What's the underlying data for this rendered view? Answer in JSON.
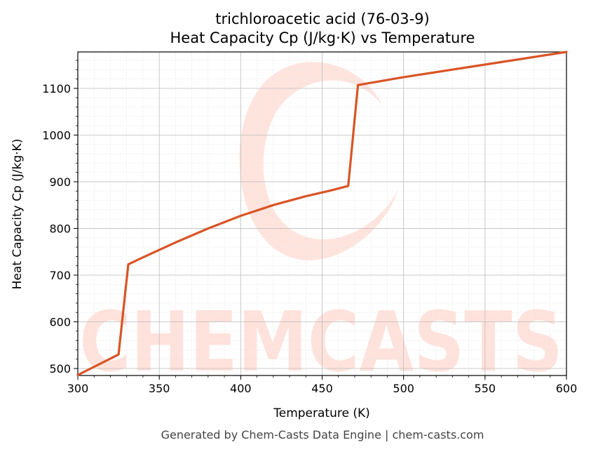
{
  "chart_data": {
    "type": "line",
    "title_line1": "trichloroacetic acid (76-03-9)",
    "title_line2": "Heat Capacity Cp (J/kg·K) vs Temperature",
    "xlabel": "Temperature (K)",
    "ylabel": "Heat Capacity Cp (J/kg·K)",
    "xlim": [
      300,
      600
    ],
    "ylim": [
      485,
      1178
    ],
    "x_ticks": [
      300,
      350,
      400,
      450,
      500,
      550,
      600
    ],
    "y_ticks": [
      500,
      600,
      700,
      800,
      900,
      1000,
      1100
    ],
    "grid": true,
    "line_color": "#d95425",
    "series": [
      {
        "x": [
          300,
          325,
          331,
          340,
          360,
          380,
          400,
          420,
          440,
          455,
          466,
          472,
          500,
          550,
          600
        ],
        "values": [
          486,
          530,
          723,
          738,
          770,
          800,
          827,
          850,
          869,
          881,
          891,
          1107,
          1124,
          1151,
          1178
        ]
      }
    ]
  },
  "watermark_text": "CHEMCASTS",
  "footer": "Generated by Chem-Casts Data Engine | chem-casts.com"
}
